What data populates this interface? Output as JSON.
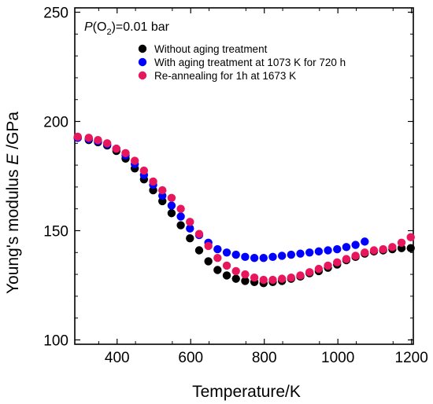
{
  "chart_data": {
    "type": "scatter",
    "title": "",
    "annotation": {
      "prefix_italic": "P",
      "open": "(O",
      "sub": "2",
      "suffix": ")=0.01 bar"
    },
    "xlabel": "Temperature/K",
    "ylabel": {
      "prefix": "Young's modulus ",
      "symbol": "E",
      "unit": " /GPa"
    },
    "xlim": [
      285,
      1205
    ],
    "ylim": [
      98,
      252
    ],
    "xticks": [
      400,
      600,
      800,
      1000,
      1200
    ],
    "yticks": [
      100,
      150,
      200,
      250
    ],
    "legend_position": "top-right",
    "grid": false,
    "series": [
      {
        "name": "Without aging treatment",
        "color": "#000000",
        "x": [
          293,
          323,
          348,
          373,
          398,
          423,
          448,
          473,
          498,
          523,
          548,
          573,
          598,
          623,
          648,
          673,
          698,
          723,
          748,
          773,
          798,
          823,
          848,
          873,
          898,
          923,
          948,
          973,
          998,
          1023,
          1048,
          1073,
          1098,
          1123,
          1148,
          1173,
          1198
        ],
        "y": [
          192.5,
          191.5,
          190.5,
          189,
          186.5,
          183,
          178.5,
          173.5,
          168.5,
          163.5,
          158,
          152.5,
          146.5,
          141,
          136,
          132,
          129.5,
          128,
          127,
          126.5,
          126,
          126.5,
          127,
          128,
          129,
          130.5,
          131.5,
          133,
          134.5,
          136.5,
          138,
          139.5,
          140.5,
          141,
          141.5,
          142,
          142
        ]
      },
      {
        "name": "With aging treatment at 1073 K for 720 h",
        "color": "#0000ff",
        "x": [
          293,
          323,
          348,
          373,
          398,
          423,
          448,
          473,
          498,
          523,
          548,
          573,
          598,
          623,
          648,
          673,
          698,
          723,
          748,
          773,
          798,
          823,
          848,
          873,
          898,
          923,
          948,
          973,
          998,
          1023,
          1048,
          1073
        ],
        "y": [
          192.5,
          192,
          191,
          189.5,
          187.5,
          184.5,
          180.5,
          175.5,
          171,
          166,
          161.5,
          156.5,
          151,
          148,
          144.5,
          141.5,
          140,
          139,
          138,
          137.5,
          137.5,
          138,
          138.5,
          139,
          139.5,
          140,
          140.5,
          141,
          141.5,
          142.5,
          143.5,
          145
        ]
      },
      {
        "name": "Re-annealing for 1h at 1673 K",
        "color": "#e8175d",
        "x": [
          293,
          323,
          348,
          373,
          398,
          423,
          448,
          473,
          498,
          523,
          548,
          573,
          598,
          623,
          648,
          673,
          698,
          723,
          748,
          773,
          798,
          823,
          848,
          873,
          898,
          923,
          948,
          973,
          998,
          1023,
          1048,
          1073,
          1098,
          1123,
          1148,
          1173,
          1198
        ],
        "y": [
          193,
          192.5,
          191.5,
          190,
          187.5,
          185.5,
          182,
          177.5,
          172.5,
          168.5,
          165,
          160,
          154,
          148.5,
          143,
          137.5,
          134,
          131.5,
          130,
          128.5,
          127.5,
          127.5,
          128,
          128.5,
          129.5,
          131,
          132.5,
          134,
          135.5,
          137,
          138.5,
          140,
          141,
          141.5,
          142.5,
          144.5,
          147
        ]
      }
    ]
  }
}
